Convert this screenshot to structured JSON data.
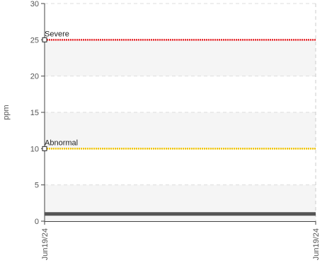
{
  "chart_data": {
    "type": "line",
    "title": "",
    "xlabel": "",
    "ylabel": "ppm",
    "ylim": [
      0,
      30
    ],
    "y_ticks": [
      0,
      5,
      10,
      15,
      20,
      25,
      30
    ],
    "x_tick_labels": [
      "Jun19/24",
      "Jun19/24"
    ],
    "grid": true,
    "series": [
      {
        "values": [
          1,
          1
        ],
        "color": "#555555"
      }
    ],
    "thresholds": [
      {
        "label": "Severe",
        "value": 25,
        "color": "#e8262a"
      },
      {
        "label": "Abnormal",
        "value": 10,
        "color": "#f2c500"
      }
    ]
  }
}
